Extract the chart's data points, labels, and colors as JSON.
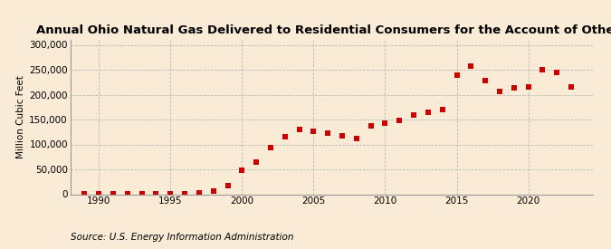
{
  "title": "Annual Ohio Natural Gas Delivered to Residential Consumers for the Account of Others",
  "ylabel": "Million Cubic Feet",
  "source": "Source: U.S. Energy Information Administration",
  "background_color": "#faebd7",
  "dot_color": "#cc0000",
  "years": [
    1989,
    1990,
    1991,
    1992,
    1993,
    1994,
    1995,
    1996,
    1997,
    1998,
    1999,
    2000,
    2001,
    2002,
    2003,
    2004,
    2005,
    2006,
    2007,
    2008,
    2009,
    2010,
    2011,
    2012,
    2013,
    2014,
    2015,
    2016,
    2017,
    2018,
    2019,
    2020,
    2021,
    2022,
    2023
  ],
  "values": [
    300,
    400,
    300,
    400,
    500,
    400,
    500,
    600,
    2500,
    6000,
    17000,
    48000,
    65000,
    93000,
    115000,
    130000,
    127000,
    122000,
    118000,
    112000,
    138000,
    143000,
    148000,
    160000,
    165000,
    170000,
    240000,
    257000,
    228000,
    207000,
    213000,
    215000,
    250000,
    245000,
    215000
  ],
  "xlim": [
    1988.0,
    2024.5
  ],
  "ylim": [
    0,
    310000
  ],
  "yticks": [
    0,
    50000,
    100000,
    150000,
    200000,
    250000,
    300000
  ],
  "xticks": [
    1990,
    1995,
    2000,
    2005,
    2010,
    2015,
    2020
  ],
  "grid_color": "#bbbbbb",
  "title_fontsize": 9.5,
  "ylabel_fontsize": 7.5,
  "tick_fontsize": 7.5,
  "source_fontsize": 7.5,
  "marker_size": 4.0
}
